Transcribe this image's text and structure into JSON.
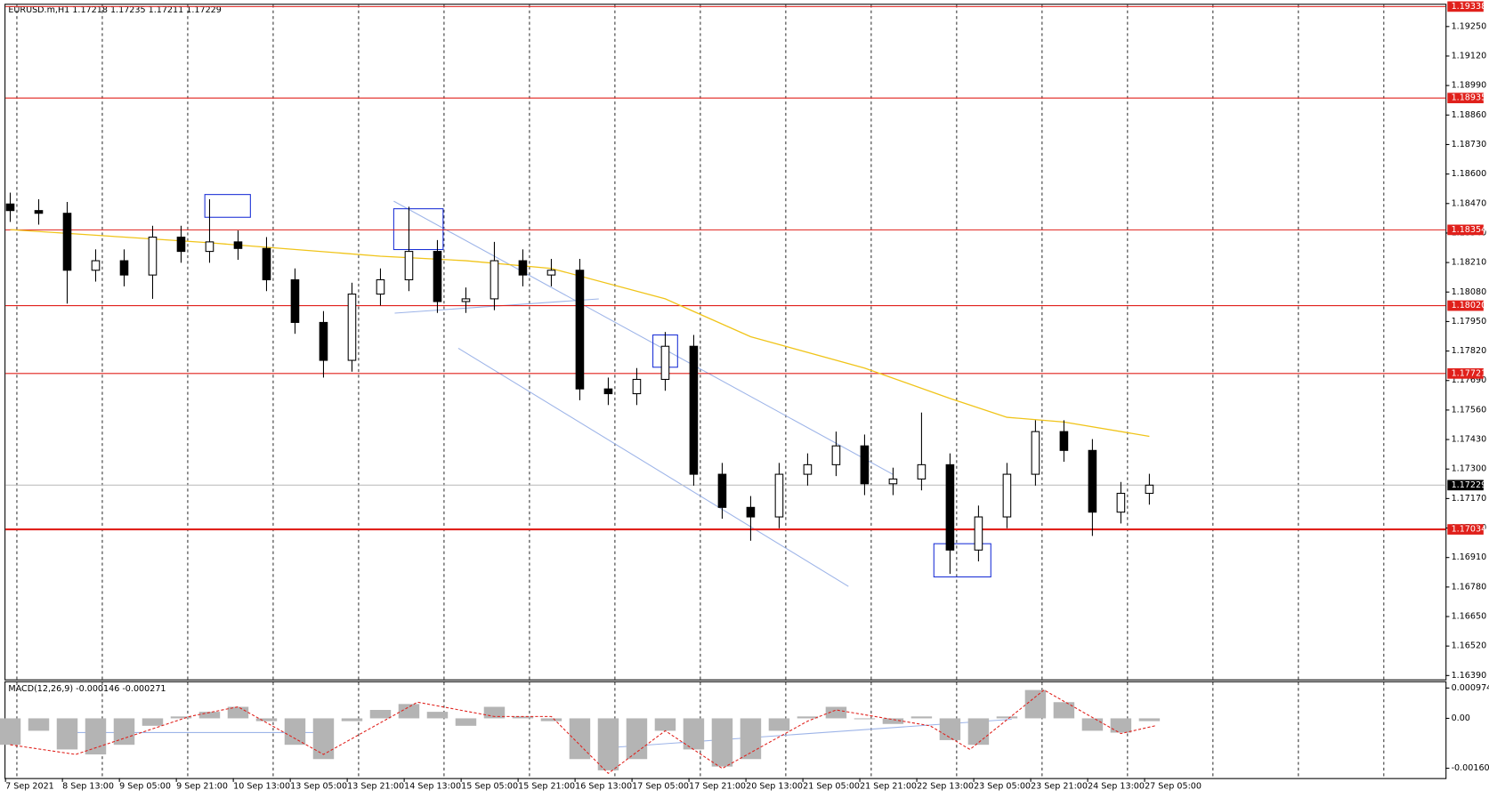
{
  "header": {
    "title": "EURUSD.m,H1 1.17218 1.17235 1.17211 1.17229"
  },
  "chart_data": [
    {
      "type": "candlestick",
      "ylim": [
        1.16373,
        1.19346
      ],
      "yticks": [
        {
          "value": 1.1925,
          "label": "1.19250"
        },
        {
          "value": 1.1912,
          "label": "1.19120"
        },
        {
          "value": 1.1899,
          "label": "1.18990"
        },
        {
          "value": 1.1886,
          "label": "1.18860"
        },
        {
          "value": 1.1873,
          "label": "1.18730"
        },
        {
          "value": 1.186,
          "label": "1.18600"
        },
        {
          "value": 1.1847,
          "label": "1.18470"
        },
        {
          "value": 1.1834,
          "label": "1.18340"
        },
        {
          "value": 1.1821,
          "label": "1.18210"
        },
        {
          "value": 1.1808,
          "label": "1.18080"
        },
        {
          "value": 1.1795,
          "label": "1.17950"
        },
        {
          "value": 1.1782,
          "label": "1.17820"
        },
        {
          "value": 1.1769,
          "label": "1.17690"
        },
        {
          "value": 1.1756,
          "label": "1.17560"
        },
        {
          "value": 1.1743,
          "label": "1.17430"
        },
        {
          "value": 1.173,
          "label": "1.17300"
        },
        {
          "value": 1.1717,
          "label": "1.17170"
        },
        {
          "value": 1.1704,
          "label": "1.17040"
        },
        {
          "value": 1.1691,
          "label": "1.16910"
        },
        {
          "value": 1.1678,
          "label": "1.16780"
        },
        {
          "value": 1.1665,
          "label": "1.16650"
        },
        {
          "value": 1.1652,
          "label": "1.16520"
        },
        {
          "value": 1.1639,
          "label": "1.16390"
        }
      ],
      "time_labels": [
        "7 Sep 2021",
        "8 Sep 13:00",
        "9 Sep 05:00",
        "9 Sep 21:00",
        "10 Sep 13:00",
        "13 Sep 05:00",
        "13 Sep 21:00",
        "14 Sep 13:00",
        "15 Sep 05:00",
        "15 Sep 21:00",
        "16 Sep 13:00",
        "17 Sep 05:00",
        "17 Sep 21:00",
        "20 Sep 13:00",
        "21 Sep 05:00",
        "21 Sep 21:00",
        "22 Sep 13:00",
        "23 Sep 05:00",
        "23 Sep 21:00",
        "24 Sep 13:00",
        "27 Sep 05:00"
      ],
      "open": [
        1.18468,
        1.18439,
        1.18427,
        1.18176,
        1.18218,
        1.18155,
        1.18322,
        1.18259,
        1.18301,
        1.18272,
        1.18134,
        1.17946,
        1.17779,
        1.18071,
        1.18134,
        1.18259,
        1.18038,
        1.1805,
        1.18218,
        1.18155,
        1.18176,
        1.17653,
        1.17632,
        1.17695,
        1.17841,
        1.17277,
        1.17131,
        1.17089,
        1.17277,
        1.17319,
        1.17402,
        1.17235,
        1.17256,
        1.17319,
        1.16943,
        1.17089,
        1.17277,
        1.17465,
        1.17382,
        1.1711,
        1.17193
      ],
      "high": [
        1.18518,
        1.18489,
        1.18477,
        1.18268,
        1.18268,
        1.18372,
        1.18372,
        1.18489,
        1.18351,
        1.18322,
        1.18184,
        1.17996,
        1.18121,
        1.18184,
        1.18456,
        1.18309,
        1.181,
        1.18301,
        1.18268,
        1.18226,
        1.18226,
        1.17703,
        1.17745,
        1.17904,
        1.17891,
        1.17327,
        1.17181,
        1.17327,
        1.17369,
        1.17465,
        1.17452,
        1.17306,
        1.17549,
        1.17369,
        1.17139,
        1.17327,
        1.17515,
        1.17515,
        1.17432,
        1.17243,
        1.17279
      ],
      "low": [
        1.18389,
        1.18377,
        1.18029,
        1.18126,
        1.18105,
        1.1805,
        1.18209,
        1.18209,
        1.18222,
        1.18084,
        1.17896,
        1.17703,
        1.17729,
        1.18021,
        1.18084,
        1.17988,
        1.17988,
        1.18,
        1.18105,
        1.18105,
        1.17603,
        1.17582,
        1.17582,
        1.17645,
        1.17227,
        1.17081,
        1.16984,
        1.17039,
        1.17227,
        1.17269,
        1.17185,
        1.17185,
        1.17206,
        1.16838,
        1.16893,
        1.17039,
        1.17227,
        1.17332,
        1.17005,
        1.1706,
        1.17143
      ],
      "close": [
        1.18439,
        1.18427,
        1.18176,
        1.18218,
        1.18155,
        1.18322,
        1.18259,
        1.18301,
        1.18272,
        1.18134,
        1.17946,
        1.17779,
        1.18071,
        1.18134,
        1.18259,
        1.18038,
        1.1805,
        1.18218,
        1.18155,
        1.18176,
        1.17653,
        1.17632,
        1.17695,
        1.17841,
        1.17277,
        1.17131,
        1.17089,
        1.17277,
        1.17319,
        1.17402,
        1.17235,
        1.17256,
        1.17319,
        1.16943,
        1.17089,
        1.17277,
        1.17465,
        1.17382,
        1.1711,
        1.17193,
        1.17229
      ],
      "moving_average": {
        "color": "#f0c419",
        "x": [
          0,
          4,
          7,
          13,
          16,
          19,
          23,
          26,
          30,
          33,
          35,
          37,
          40
        ],
        "values": [
          1.18355,
          1.18322,
          1.18297,
          1.18238,
          1.18218,
          1.18184,
          1.1805,
          1.17883,
          1.17745,
          1.17611,
          1.17528,
          1.17507,
          1.17444
        ]
      },
      "levels": {
        "color": "#e0201b",
        "values": [
          1.19338,
          1.18935,
          1.18354,
          {
            "value": 1.1802,
            "label": "1.18020"
          },
          1.17721,
          1.17034
        ]
      },
      "current_price": 1.17229
    },
    {
      "type": "macd",
      "title": "MACD(12,26,9) -0.000146 -0.000271",
      "ylim": [
        -0.00192,
        0.00116
      ],
      "yticks": [
        0.000974,
        {
          "value": 0,
          "label": "0.00"
        },
        -0.001604
      ],
      "histogram": {
        "color": "#b4b4b4",
        "values": [
          -0.00085,
          -0.0004,
          -0.001,
          -0.00116,
          -0.00085,
          -0.00024,
          6e-05,
          0.00021,
          0.00037,
          -9e-05,
          -0.00085,
          -0.00131,
          -9e-05,
          0.00027,
          0.00046,
          0.00021,
          -0.00024,
          0.00037,
          6e-05,
          -9e-05,
          -0.00131,
          -0.00167,
          -0.00131,
          -0.0004,
          -0.001,
          -0.00155,
          -0.00131,
          -0.0004,
          6e-05,
          0.00037,
          -3e-05,
          -0.00018,
          6e-05,
          -0.0007,
          -0.00085,
          6e-05,
          0.00091,
          0.00052,
          -0.0004,
          -0.00046,
          -9e-05
        ]
      },
      "signal": {
        "color": "#e0201b",
        "x": [
          0,
          2.3,
          6.3,
          8,
          11,
          14.3,
          17,
          19,
          21,
          23,
          25,
          28,
          29,
          32.3,
          33.7,
          36.3,
          39,
          40.2
        ],
        "values": [
          -0.00085,
          -0.00116,
          6e-05,
          0.00037,
          -0.00116,
          0.00052,
          6e-05,
          6e-05,
          -0.00177,
          -0.0004,
          -0.00161,
          -9e-05,
          0.00027,
          -0.00024,
          -0.001,
          0.00091,
          -0.00049,
          -0.00024
        ]
      }
    }
  ]
}
